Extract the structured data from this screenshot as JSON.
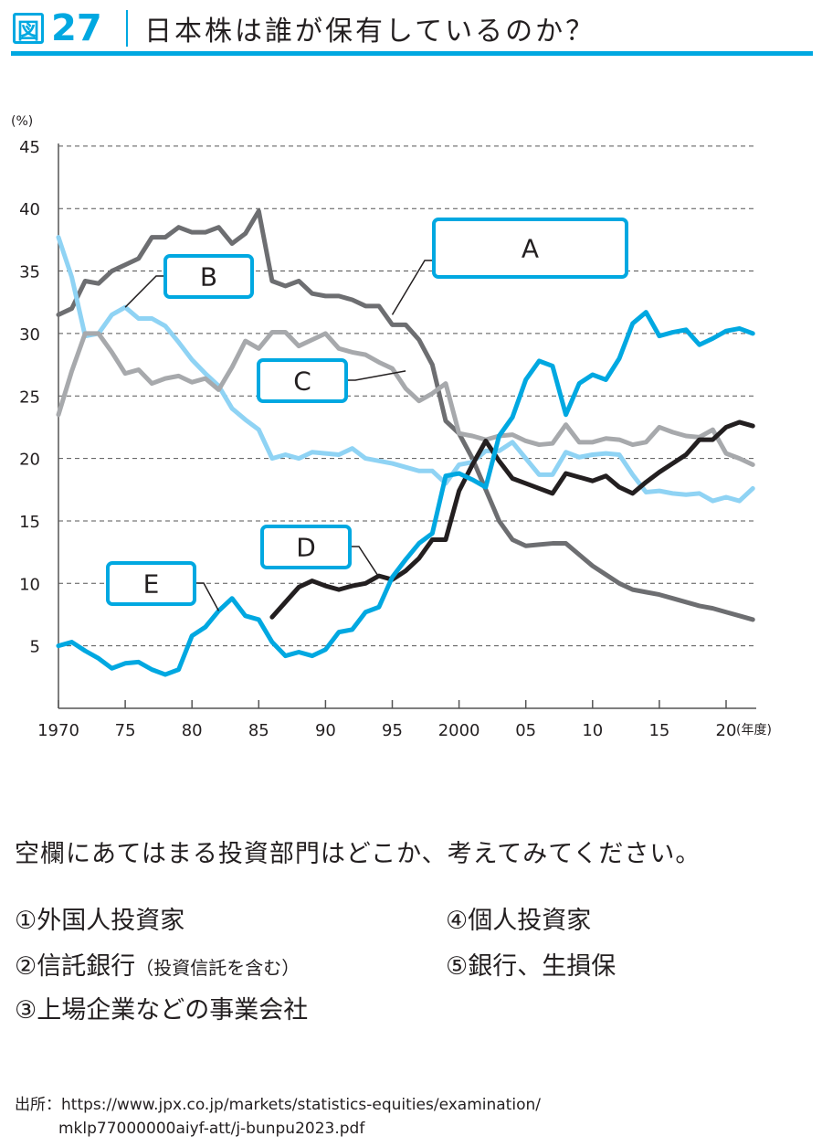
{
  "header": {
    "figure_mark": "図",
    "figure_number": "27",
    "title": "日本株は誰が保有しているのか？"
  },
  "chart_data": {
    "type": "line",
    "ylabel": "(%)",
    "xlabel_unit": "(年度)",
    "ylim": [
      0,
      45
    ],
    "xlim": [
      1970,
      2022
    ],
    "yticks": [
      "45",
      "40",
      "35",
      "30",
      "25",
      "20",
      "15",
      "10",
      "5"
    ],
    "xticks": [
      {
        "year": 1970,
        "label": "1970"
      },
      {
        "year": 1975,
        "label": "75"
      },
      {
        "year": 1980,
        "label": "80"
      },
      {
        "year": 1985,
        "label": "85"
      },
      {
        "year": 1990,
        "label": "90"
      },
      {
        "year": 1995,
        "label": "95"
      },
      {
        "year": 2000,
        "label": "2000"
      },
      {
        "year": 2005,
        "label": "05"
      },
      {
        "year": 2010,
        "label": "10"
      },
      {
        "year": 2015,
        "label": "15"
      },
      {
        "year": 2020,
        "label": "20"
      }
    ],
    "grid": "horizontal dashed",
    "series": [
      {
        "name": "A",
        "color": "#6d6e71",
        "start": 1970,
        "values": [
          31.5,
          32,
          34.2,
          34,
          35,
          35.5,
          36,
          37.7,
          37.7,
          38.5,
          38.1,
          38.1,
          38.5,
          37.2,
          38,
          39.8,
          34.2,
          33.8,
          34.2,
          33.2,
          33,
          33,
          32.7,
          32.2,
          32.2,
          30.7,
          30.7,
          29.5,
          27.5,
          23,
          22,
          20,
          17.5,
          15,
          13.5,
          13,
          13.1,
          13.2,
          13.2,
          12.3,
          11.4,
          10.7,
          10,
          9.5,
          9.3,
          9.1,
          8.8,
          8.5,
          8.2,
          8,
          7.7,
          7.4,
          7.1
        ]
      },
      {
        "name": "B",
        "color": "#8fd3f4",
        "start": 1970,
        "values": [
          37.7,
          34.5,
          29.8,
          30,
          31.5,
          32.1,
          31.2,
          31.2,
          30.6,
          29.3,
          27.9,
          26.8,
          25.8,
          24,
          23.1,
          22.3,
          20,
          20.3,
          20,
          20.5,
          20.4,
          20.3,
          20.8,
          20,
          19.8,
          19.6,
          19.3,
          19,
          19,
          18,
          19.5,
          19.7,
          20.6,
          20.6,
          21.3,
          20,
          18.7,
          18.7,
          20.5,
          20.1,
          20.3,
          20.4,
          20.3,
          18.7,
          17.3,
          17.4,
          17.2,
          17.1,
          17.2,
          16.6,
          16.9,
          16.6,
          17.6
        ]
      },
      {
        "name": "C",
        "color": "#a7a9ac",
        "start": 1970,
        "values": [
          23.5,
          27,
          30,
          30,
          28.5,
          26.8,
          27.1,
          26,
          26.4,
          26.6,
          26.1,
          26.4,
          25.5,
          27.3,
          29.4,
          28.8,
          30.1,
          30.1,
          29,
          29.5,
          30,
          28.8,
          28.5,
          28.3,
          27.7,
          27.2,
          25.6,
          24.6,
          25.2,
          26,
          22,
          21.8,
          21.5,
          21.8,
          21.9,
          21.4,
          21.1,
          21.2,
          22.7,
          21.3,
          21.3,
          21.6,
          21.5,
          21.1,
          21.3,
          22.5,
          22.1,
          21.8,
          21.7,
          22.3,
          20.4,
          20,
          19.5
        ]
      },
      {
        "name": "D",
        "color": "#231f20",
        "start": 1986,
        "values": [
          7.3,
          8.5,
          9.7,
          10.2,
          9.8,
          9.5,
          9.8,
          10,
          10.6,
          10.3,
          11,
          12,
          13.5,
          13.5,
          17.4,
          19.5,
          21.4,
          19.8,
          18.4,
          18,
          17.6,
          17.2,
          18.8,
          18.5,
          18.2,
          18.6,
          17.7,
          17.2,
          18.1,
          18.9,
          19.6,
          20.3,
          21.5,
          21.5,
          22.5,
          22.9,
          22.6
        ]
      },
      {
        "name": "E",
        "color": "#00a8e1",
        "start": 1970,
        "values": [
          5,
          5.3,
          4.6,
          4,
          3.2,
          3.6,
          3.7,
          3.1,
          2.7,
          3.1,
          5.8,
          6.5,
          7.8,
          8.8,
          7.4,
          7.1,
          5.3,
          4.2,
          4.5,
          4.2,
          4.7,
          6.1,
          6.3,
          7.7,
          8.1,
          10.5,
          11.9,
          13.2,
          14,
          18.6,
          18.8,
          18.3,
          17.7,
          21.8,
          23.3,
          26.3,
          27.8,
          27.4,
          23.5,
          26,
          26.7,
          26.3,
          28,
          30.8,
          31.7,
          29.8,
          30.1,
          30.3,
          29.1,
          29.6,
          30.2,
          30.4,
          30
        ]
      }
    ],
    "label_boxes": [
      {
        "label": "A",
        "points_to": {
          "year": 1995,
          "value": 31.5
        }
      },
      {
        "label": "B",
        "points_to": {
          "year": 1975,
          "value": 32.1
        }
      },
      {
        "label": "C",
        "points_to": {
          "year": 1996,
          "value": 27
        }
      },
      {
        "label": "D",
        "points_to": {
          "year": 1994,
          "value": 10.5
        }
      },
      {
        "label": "E",
        "points_to": {
          "year": 1982,
          "value": 7.8
        }
      }
    ]
  },
  "question": "空欄にあてはまる投資部門はどこか、考えてみてください。",
  "options": [
    {
      "text": "①外国人投資家",
      "note": ""
    },
    {
      "text": "④個人投資家",
      "note": ""
    },
    {
      "text": "②信託銀行",
      "note": "（投資信託を含む）"
    },
    {
      "text": "⑤銀行、生損保",
      "note": ""
    },
    {
      "text": "③上場企業などの事業会社",
      "note": ""
    }
  ],
  "source": {
    "label": "出所：",
    "line1": "https://www.jpx.co.jp/markets/statistics-equities/examination/",
    "line2": "mklp77000000aiyf-att/j-bunpu2023.pdf"
  }
}
